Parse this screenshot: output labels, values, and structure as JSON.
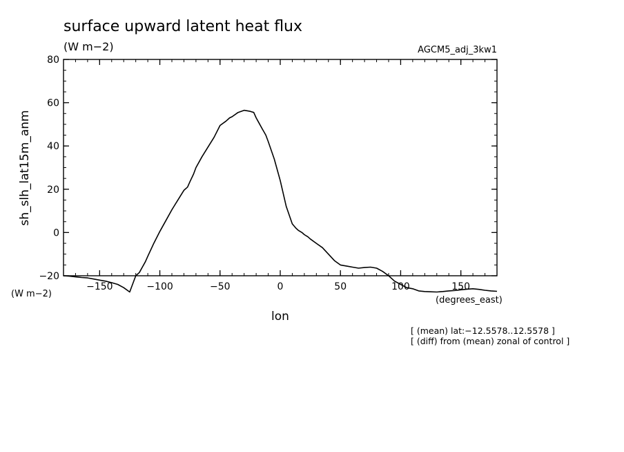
{
  "chart_data": {
    "type": "line",
    "title": "surface upward latent heat flux",
    "units": "(W m−2)",
    "run_label": "AGCM5_adj_3kw1",
    "ylabel": "sh_slh_lat15m_anm",
    "ylabel_units": "(W m−2)",
    "xlabel": "lon",
    "xlabel_units": "(degrees_east)",
    "notes": [
      "[ (mean) lat:−12.5578..12.5578 ]",
      "[ (diff) from (mean) zonal of control ]"
    ],
    "xlim": [
      -180,
      180
    ],
    "ylim": [
      -20,
      80
    ],
    "x_ticks": [
      {
        "value": -150,
        "label": "−150"
      },
      {
        "value": -100,
        "label": "−100"
      },
      {
        "value": -50,
        "label": "−50"
      },
      {
        "value": 0,
        "label": "0"
      },
      {
        "value": 50,
        "label": "50"
      },
      {
        "value": 100,
        "label": "100"
      },
      {
        "value": 150,
        "label": "150"
      }
    ],
    "y_ticks": [
      {
        "value": -20,
        "label": "−20"
      },
      {
        "value": 0,
        "label": "0"
      },
      {
        "value": 20,
        "label": "20"
      },
      {
        "value": 40,
        "label": "40"
      },
      {
        "value": 60,
        "label": "60"
      },
      {
        "value": 80,
        "label": "80"
      }
    ],
    "x_minor_step": 10,
    "y_minor_step": 5,
    "grid": false,
    "series": [
      {
        "color": "#000000",
        "x": [
          -180,
          -175,
          -170,
          -165,
          -160,
          -155,
          -150,
          -145,
          -140,
          -135,
          -130,
          -125,
          -120,
          -117,
          -115,
          -112,
          -110,
          -105,
          -100,
          -95,
          -90,
          -85,
          -80,
          -77,
          -75,
          -72,
          -70,
          -65,
          -60,
          -55,
          -50,
          -45,
          -42,
          -40,
          -35,
          -30,
          -25,
          -22,
          -20,
          -18,
          -15,
          -12,
          -10,
          -5,
          0,
          5,
          10,
          13,
          15,
          18,
          20,
          23,
          25,
          30,
          35,
          40,
          45,
          50,
          55,
          60,
          65,
          70,
          75,
          80,
          85,
          90,
          95,
          100,
          105,
          110,
          115,
          120,
          125,
          130,
          135,
          140,
          145,
          150,
          155,
          160,
          165,
          170,
          175,
          180
        ],
        "y": [
          -20,
          -20.2,
          -20.5,
          -20.8,
          -21,
          -21.5,
          -22,
          -22.5,
          -23.2,
          -24,
          -25.5,
          -27.5,
          -20,
          -18.5,
          -16.5,
          -13.5,
          -11,
          -5,
          0.5,
          5.5,
          10.5,
          15,
          19.5,
          21,
          23.5,
          27,
          30,
          35,
          39.5,
          44,
          49.5,
          51.5,
          53,
          53.5,
          55.5,
          56.5,
          56,
          55.5,
          53,
          51,
          48,
          45,
          42,
          34,
          24,
          12,
          4,
          2,
          1,
          0,
          -1,
          -2,
          -3,
          -5,
          -7,
          -10,
          -13,
          -15,
          -15.5,
          -16,
          -16.5,
          -16.2,
          -16,
          -16.5,
          -18,
          -20,
          -22.5,
          -24,
          -25.5,
          -26,
          -27,
          -27.3,
          -27.4,
          -27.5,
          -27.3,
          -27,
          -26.8,
          -26.5,
          -26.2,
          -26,
          -26.3,
          -26.7,
          -27,
          -27.2
        ]
      }
    ]
  }
}
